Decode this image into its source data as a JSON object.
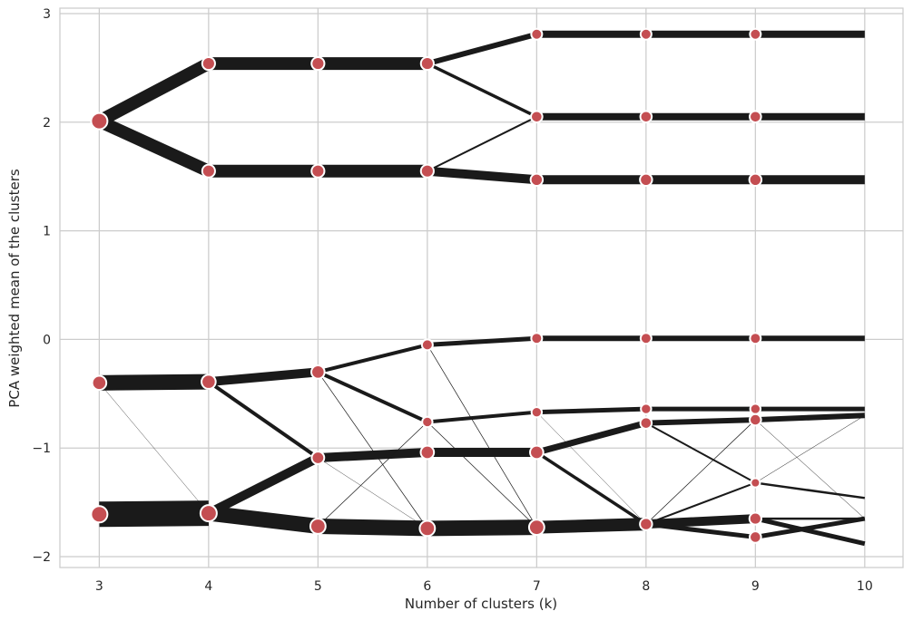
{
  "chart_data": {
    "type": "line",
    "title": "",
    "xlabel": "Number of clusters (k)",
    "ylabel": "PCA weighted mean of the clusters",
    "xlim": [
      2.64,
      10.35
    ],
    "ylim": [
      -2.1,
      3.05
    ],
    "grid": true,
    "x_ticks": [
      3,
      4,
      5,
      6,
      7,
      8,
      9,
      10
    ],
    "x_tick_labels": [
      "3",
      "4",
      "5",
      "6",
      "7",
      "8",
      "9",
      "10"
    ],
    "y_ticks": [
      -2,
      -1,
      0,
      1,
      2,
      3
    ],
    "y_tick_labels": [
      "−2",
      "−1",
      "0",
      "1",
      "2",
      "3"
    ],
    "colors": {
      "line": "#1a1a1a",
      "node": "#c44e52",
      "node_edge": "#ffffff",
      "grid": "#cccccc",
      "background": "#ffffff"
    },
    "nodes": [
      {
        "k": 3,
        "y": 2.01,
        "size": 1.0
      },
      {
        "k": 3,
        "y": -0.4,
        "size": 0.8
      },
      {
        "k": 3,
        "y": -1.61,
        "size": 1.0
      },
      {
        "k": 4,
        "y": 2.54,
        "size": 0.68
      },
      {
        "k": 4,
        "y": 1.55,
        "size": 0.68
      },
      {
        "k": 4,
        "y": -0.39,
        "size": 0.8
      },
      {
        "k": 4,
        "y": -1.6,
        "size": 1.0
      },
      {
        "k": 5,
        "y": 2.54,
        "size": 0.68
      },
      {
        "k": 5,
        "y": 1.55,
        "size": 0.68
      },
      {
        "k": 5,
        "y": -0.3,
        "size": 0.72
      },
      {
        "k": 5,
        "y": -1.09,
        "size": 0.65
      },
      {
        "k": 5,
        "y": -1.72,
        "size": 0.9
      },
      {
        "k": 6,
        "y": 2.54,
        "size": 0.68
      },
      {
        "k": 6,
        "y": 1.55,
        "size": 0.68
      },
      {
        "k": 6,
        "y": -0.05,
        "size": 0.5
      },
      {
        "k": 6,
        "y": -0.76,
        "size": 0.45
      },
      {
        "k": 6,
        "y": -1.04,
        "size": 0.72
      },
      {
        "k": 6,
        "y": -1.74,
        "size": 0.9
      },
      {
        "k": 7,
        "y": 2.81,
        "size": 0.5
      },
      {
        "k": 7,
        "y": 2.05,
        "size": 0.55
      },
      {
        "k": 7,
        "y": 1.47,
        "size": 0.62
      },
      {
        "k": 7,
        "y": 0.01,
        "size": 0.5
      },
      {
        "k": 7,
        "y": -0.67,
        "size": 0.45
      },
      {
        "k": 7,
        "y": -1.04,
        "size": 0.72
      },
      {
        "k": 7,
        "y": -1.73,
        "size": 0.9
      },
      {
        "k": 8,
        "y": 2.81,
        "size": 0.5
      },
      {
        "k": 8,
        "y": 2.05,
        "size": 0.55
      },
      {
        "k": 8,
        "y": 1.47,
        "size": 0.62
      },
      {
        "k": 8,
        "y": 0.01,
        "size": 0.5
      },
      {
        "k": 8,
        "y": -0.64,
        "size": 0.45
      },
      {
        "k": 8,
        "y": -0.77,
        "size": 0.55
      },
      {
        "k": 8,
        "y": -1.7,
        "size": 0.62
      },
      {
        "k": 9,
        "y": 2.81,
        "size": 0.5
      },
      {
        "k": 9,
        "y": 2.05,
        "size": 0.55
      },
      {
        "k": 9,
        "y": 1.47,
        "size": 0.62
      },
      {
        "k": 9,
        "y": 0.01,
        "size": 0.5
      },
      {
        "k": 9,
        "y": -0.64,
        "size": 0.45
      },
      {
        "k": 9,
        "y": -0.74,
        "size": 0.55
      },
      {
        "k": 9,
        "y": -1.32,
        "size": 0.35
      },
      {
        "k": 9,
        "y": -1.65,
        "size": 0.6
      },
      {
        "k": 9,
        "y": -1.82,
        "size": 0.55
      }
    ],
    "edges": [
      {
        "k0": 3,
        "y0": 2.01,
        "k1": 4,
        "y1": 2.54,
        "weight": 14
      },
      {
        "k0": 3,
        "y0": 2.01,
        "k1": 4,
        "y1": 1.55,
        "weight": 14
      },
      {
        "k0": 3,
        "y0": -0.4,
        "k1": 4,
        "y1": -0.39,
        "weight": 17
      },
      {
        "k0": 3,
        "y0": -0.4,
        "k1": 4,
        "y1": -1.6,
        "weight": 0.4
      },
      {
        "k0": 3,
        "y0": -1.61,
        "k1": 4,
        "y1": -1.6,
        "weight": 28
      },
      {
        "k0": 4,
        "y0": 2.54,
        "k1": 5,
        "y1": 2.54,
        "weight": 14
      },
      {
        "k0": 4,
        "y0": 1.55,
        "k1": 5,
        "y1": 1.55,
        "weight": 14
      },
      {
        "k0": 4,
        "y0": -0.39,
        "k1": 5,
        "y1": -0.3,
        "weight": 10
      },
      {
        "k0": 4,
        "y0": -0.39,
        "k1": 5,
        "y1": -1.09,
        "weight": 4
      },
      {
        "k0": 4,
        "y0": -1.6,
        "k1": 5,
        "y1": -1.09,
        "weight": 10
      },
      {
        "k0": 4,
        "y0": -1.6,
        "k1": 5,
        "y1": -1.72,
        "weight": 17
      },
      {
        "k0": 5,
        "y0": 2.54,
        "k1": 6,
        "y1": 2.54,
        "weight": 14
      },
      {
        "k0": 5,
        "y0": 1.55,
        "k1": 6,
        "y1": 1.55,
        "weight": 14
      },
      {
        "k0": 5,
        "y0": -0.3,
        "k1": 6,
        "y1": -0.05,
        "weight": 4
      },
      {
        "k0": 5,
        "y0": -0.3,
        "k1": 6,
        "y1": -0.76,
        "weight": 4
      },
      {
        "k0": 5,
        "y0": -0.3,
        "k1": 6,
        "y1": -1.74,
        "weight": 0.7
      },
      {
        "k0": 5,
        "y0": -1.09,
        "k1": 6,
        "y1": -1.04,
        "weight": 10
      },
      {
        "k0": 5,
        "y0": -1.09,
        "k1": 6,
        "y1": -1.74,
        "weight": 0.4
      },
      {
        "k0": 5,
        "y0": -1.72,
        "k1": 6,
        "y1": -1.74,
        "weight": 17
      },
      {
        "k0": 5,
        "y0": -1.72,
        "k1": 6,
        "y1": -0.76,
        "weight": 0.7
      },
      {
        "k0": 6,
        "y0": 2.54,
        "k1": 7,
        "y1": 2.81,
        "weight": 6
      },
      {
        "k0": 6,
        "y0": 2.54,
        "k1": 7,
        "y1": 2.05,
        "weight": 3.5
      },
      {
        "k0": 6,
        "y0": 1.55,
        "k1": 7,
        "y1": 2.05,
        "weight": 2
      },
      {
        "k0": 6,
        "y0": 1.55,
        "k1": 7,
        "y1": 1.47,
        "weight": 10
      },
      {
        "k0": 6,
        "y0": -0.05,
        "k1": 7,
        "y1": 0.01,
        "weight": 5
      },
      {
        "k0": 6,
        "y0": -0.05,
        "k1": 7,
        "y1": -1.73,
        "weight": 0.7
      },
      {
        "k0": 6,
        "y0": -0.76,
        "k1": 7,
        "y1": -0.67,
        "weight": 4
      },
      {
        "k0": 6,
        "y0": -0.76,
        "k1": 7,
        "y1": -1.73,
        "weight": 0.7
      },
      {
        "k0": 6,
        "y0": -1.04,
        "k1": 7,
        "y1": -1.04,
        "weight": 10
      },
      {
        "k0": 6,
        "y0": -1.74,
        "k1": 7,
        "y1": -1.73,
        "weight": 17
      },
      {
        "k0": 7,
        "y0": 2.81,
        "k1": 8,
        "y1": 2.81,
        "weight": 8
      },
      {
        "k0": 7,
        "y0": 2.05,
        "k1": 8,
        "y1": 2.05,
        "weight": 8
      },
      {
        "k0": 7,
        "y0": 1.47,
        "k1": 8,
        "y1": 1.47,
        "weight": 10
      },
      {
        "k0": 7,
        "y0": 0.01,
        "k1": 8,
        "y1": 0.01,
        "weight": 6
      },
      {
        "k0": 7,
        "y0": -0.67,
        "k1": 8,
        "y1": -0.64,
        "weight": 5
      },
      {
        "k0": 7,
        "y0": -0.67,
        "k1": 8,
        "y1": -1.7,
        "weight": 0.4
      },
      {
        "k0": 7,
        "y0": -1.04,
        "k1": 8,
        "y1": -0.77,
        "weight": 7
      },
      {
        "k0": 7,
        "y0": -1.04,
        "k1": 8,
        "y1": -1.7,
        "weight": 3.5
      },
      {
        "k0": 7,
        "y0": -1.73,
        "k1": 8,
        "y1": -1.7,
        "weight": 14
      },
      {
        "k0": 8,
        "y0": 2.81,
        "k1": 9,
        "y1": 2.81,
        "weight": 8
      },
      {
        "k0": 8,
        "y0": 2.05,
        "k1": 9,
        "y1": 2.05,
        "weight": 8
      },
      {
        "k0": 8,
        "y0": 1.47,
        "k1": 9,
        "y1": 1.47,
        "weight": 10
      },
      {
        "k0": 8,
        "y0": 0.01,
        "k1": 9,
        "y1": 0.01,
        "weight": 6
      },
      {
        "k0": 8,
        "y0": -0.64,
        "k1": 9,
        "y1": -0.64,
        "weight": 5
      },
      {
        "k0": 8,
        "y0": -0.77,
        "k1": 9,
        "y1": -0.74,
        "weight": 6
      },
      {
        "k0": 8,
        "y0": -0.77,
        "k1": 9,
        "y1": -1.32,
        "weight": 2
      },
      {
        "k0": 8,
        "y0": -1.7,
        "k1": 9,
        "y1": -0.74,
        "weight": 0.7
      },
      {
        "k0": 8,
        "y0": -1.7,
        "k1": 9,
        "y1": -1.32,
        "weight": 2
      },
      {
        "k0": 8,
        "y0": -1.7,
        "k1": 9,
        "y1": -1.65,
        "weight": 10
      },
      {
        "k0": 8,
        "y0": -1.7,
        "k1": 9,
        "y1": -1.82,
        "weight": 5
      },
      {
        "k0": 9,
        "y0": 2.81,
        "k1": 10,
        "y1": 2.81,
        "weight": 8
      },
      {
        "k0": 9,
        "y0": 2.05,
        "k1": 10,
        "y1": 2.05,
        "weight": 8
      },
      {
        "k0": 9,
        "y0": 1.47,
        "k1": 10,
        "y1": 1.47,
        "weight": 10
      },
      {
        "k0": 9,
        "y0": 0.01,
        "k1": 10,
        "y1": 0.01,
        "weight": 6
      },
      {
        "k0": 9,
        "y0": -0.64,
        "k1": 10,
        "y1": -0.64,
        "weight": 5
      },
      {
        "k0": 9,
        "y0": -0.74,
        "k1": 10,
        "y1": -0.7,
        "weight": 6
      },
      {
        "k0": 9,
        "y0": -0.74,
        "k1": 10,
        "y1": -1.65,
        "weight": 0.5
      },
      {
        "k0": 9,
        "y0": -1.32,
        "k1": 10,
        "y1": -1.46,
        "weight": 2.5
      },
      {
        "k0": 9,
        "y0": -1.32,
        "k1": 10,
        "y1": -0.7,
        "weight": 0.5
      },
      {
        "k0": 9,
        "y0": -1.65,
        "k1": 10,
        "y1": -1.65,
        "weight": 2.5
      },
      {
        "k0": 9,
        "y0": -1.65,
        "k1": 10,
        "y1": -1.88,
        "weight": 5
      },
      {
        "k0": 9,
        "y0": -1.82,
        "k1": 10,
        "y1": -1.65,
        "weight": 5
      }
    ]
  }
}
